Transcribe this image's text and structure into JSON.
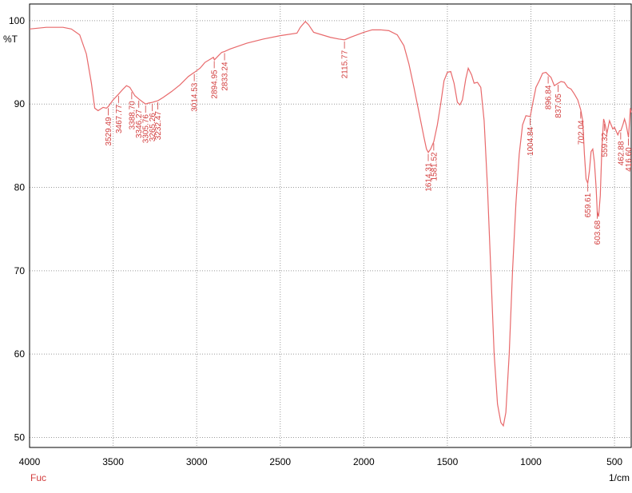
{
  "chart_data": {
    "type": "line",
    "y_label": "%T",
    "x_label": "1/cm",
    "xlim": [
      4000,
      400
    ],
    "ylim": [
      48.8,
      102
    ],
    "xticks": [
      4000,
      3500,
      3000,
      2500,
      2000,
      1500,
      1000,
      500
    ],
    "yticks": [
      50,
      60,
      70,
      80,
      90,
      100
    ],
    "grid": true,
    "x": [
      4000,
      3900,
      3800,
      3750,
      3700,
      3660,
      3630,
      3610,
      3590,
      3560,
      3540,
      3529,
      3500,
      3467,
      3440,
      3420,
      3400,
      3388,
      3370,
      3346,
      3320,
      3305,
      3290,
      3265,
      3250,
      3232,
      3200,
      3150,
      3100,
      3050,
      3014,
      2980,
      2950,
      2900,
      2894,
      2870,
      2850,
      2833,
      2800,
      2700,
      2600,
      2500,
      2400,
      2380,
      2350,
      2330,
      2300,
      2200,
      2150,
      2115,
      2080,
      2000,
      1950,
      1900,
      1850,
      1800,
      1760,
      1730,
      1700,
      1680,
      1660,
      1640,
      1625,
      1614,
      1600,
      1581,
      1560,
      1540,
      1520,
      1500,
      1480,
      1460,
      1440,
      1425,
      1410,
      1390,
      1375,
      1355,
      1340,
      1320,
      1300,
      1280,
      1260,
      1240,
      1220,
      1200,
      1180,
      1165,
      1150,
      1130,
      1110,
      1090,
      1070,
      1050,
      1030,
      1004,
      990,
      970,
      950,
      930,
      910,
      896,
      880,
      860,
      837,
      820,
      800,
      780,
      760,
      740,
      720,
      702,
      690,
      680,
      670,
      660,
      650,
      640,
      630,
      620,
      610,
      603,
      595,
      585,
      575,
      565,
      559,
      545,
      530,
      520,
      510,
      500,
      480,
      470,
      462,
      450,
      440,
      430,
      416,
      405,
      400
    ],
    "series": [
      {
        "name": "Fuc",
        "color": "#e8696b",
        "values": [
          99.0,
          99.2,
          99.2,
          99.0,
          98.3,
          96,
          92.5,
          89.5,
          89.2,
          89.6,
          89.5,
          89.7,
          90.5,
          91.2,
          91.8,
          92.2,
          92.0,
          91.6,
          91.0,
          90.6,
          90.2,
          90.0,
          90.1,
          90.2,
          90.3,
          90.4,
          90.8,
          91.5,
          92.3,
          93.3,
          93.8,
          94.3,
          95.0,
          95.6,
          95.3,
          95.8,
          96.2,
          96.3,
          96.6,
          97.3,
          97.8,
          98.2,
          98.5,
          99.2,
          99.9,
          99.5,
          98.6,
          98.0,
          97.8,
          97.7,
          98.0,
          98.6,
          98.9,
          98.9,
          98.8,
          98.3,
          97.0,
          94.8,
          92.0,
          90.0,
          88.0,
          86.0,
          84.6,
          84.2,
          84.6,
          85.5,
          87.5,
          90.0,
          92.8,
          93.8,
          93.9,
          92.5,
          90.2,
          89.9,
          90.5,
          93.0,
          94.3,
          93.5,
          92.5,
          92.6,
          92.0,
          88.0,
          80,
          70,
          60,
          54,
          51.8,
          51.4,
          53,
          60,
          70,
          78,
          84,
          87.5,
          88.6,
          88.5,
          90,
          92,
          92.8,
          93.7,
          93.8,
          93.5,
          93.2,
          92.2,
          92.5,
          92.7,
          92.6,
          92.0,
          91.8,
          91.2,
          90.5,
          89.3,
          88.0,
          84,
          81,
          80.5,
          82,
          84.3,
          84.6,
          83,
          80,
          77.0,
          76.5,
          79,
          85,
          88.2,
          87.8,
          86.5,
          88.0,
          87.5,
          87.0,
          87.2,
          86.3,
          86.8,
          86.8,
          87.5,
          88.2,
          87.5,
          86.0,
          89.5,
          89.0
        ]
      }
    ],
    "peaks": [
      {
        "value": 3529.49,
        "label": "3529.49"
      },
      {
        "value": 3467.77,
        "label": "3467.77"
      },
      {
        "value": 3388.7,
        "label": "3388.70"
      },
      {
        "value": 3346.27,
        "label": "3346.27"
      },
      {
        "value": 3305.76,
        "label": "3305.76"
      },
      {
        "value": 3265.26,
        "label": "3265.26"
      },
      {
        "value": 3232.47,
        "label": "3232.47"
      },
      {
        "value": 3014.53,
        "label": "3014.53"
      },
      {
        "value": 2894.95,
        "label": "2894.95"
      },
      {
        "value": 2833.24,
        "label": "2833.24"
      },
      {
        "value": 2115.77,
        "label": "2115.77"
      },
      {
        "value": 1614.31,
        "label": "1614.31"
      },
      {
        "value": 1581.52,
        "label": "1581.52"
      },
      {
        "value": 1004.84,
        "label": "1004.84"
      },
      {
        "value": 896.84,
        "label": "896.84"
      },
      {
        "value": 837.05,
        "label": "837.05"
      },
      {
        "value": 702.04,
        "label": "702.04"
      },
      {
        "value": 659.61,
        "label": "659.61"
      },
      {
        "value": 603.68,
        "label": "603.68"
      },
      {
        "value": 559.32,
        "label": "559.32"
      },
      {
        "value": 462.88,
        "label": "462.88"
      },
      {
        "value": 416.6,
        "label": "416.60"
      }
    ]
  }
}
